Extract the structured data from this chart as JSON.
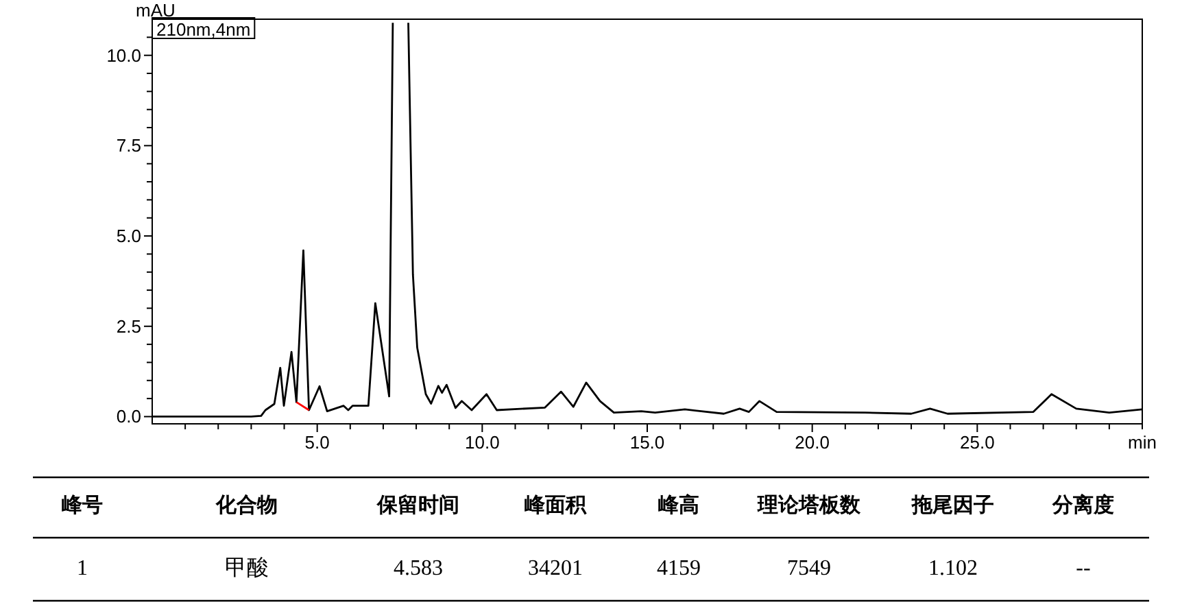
{
  "chart_data": [
    {
      "type": "line",
      "xlabel": "min",
      "ylabel": "mAU",
      "annotations": [
        "210nm,4nm"
      ],
      "xlim": [
        0,
        30
      ],
      "ylim": [
        -0.2,
        11
      ],
      "xticks": [
        {
          "value": 1,
          "label": null
        },
        {
          "value": 2,
          "label": null
        },
        {
          "value": 3,
          "label": null
        },
        {
          "value": 4,
          "label": null
        },
        {
          "value": 5,
          "label": "5.0"
        },
        {
          "value": 6,
          "label": null
        },
        {
          "value": 7,
          "label": null
        },
        {
          "value": 8,
          "label": null
        },
        {
          "value": 9,
          "label": null
        },
        {
          "value": 10,
          "label": "10.0"
        },
        {
          "value": 11,
          "label": null
        },
        {
          "value": 12,
          "label": null
        },
        {
          "value": 13,
          "label": null
        },
        {
          "value": 14,
          "label": null
        },
        {
          "value": 15,
          "label": "15.0"
        },
        {
          "value": 16,
          "label": null
        },
        {
          "value": 17,
          "label": null
        },
        {
          "value": 18,
          "label": null
        },
        {
          "value": 19,
          "label": null
        },
        {
          "value": 20,
          "label": "20.0"
        },
        {
          "value": 21,
          "label": null
        },
        {
          "value": 22,
          "label": null
        },
        {
          "value": 23,
          "label": null
        },
        {
          "value": 24,
          "label": null
        },
        {
          "value": 25,
          "label": "25.0"
        },
        {
          "value": 26,
          "label": null
        },
        {
          "value": 27,
          "label": null
        },
        {
          "value": 28,
          "label": null
        },
        {
          "value": 29,
          "label": null
        },
        {
          "value": 30,
          "label": null
        }
      ],
      "yticks": [
        {
          "value": 0,
          "label": "0.0"
        },
        {
          "value": 0.5,
          "label": null
        },
        {
          "value": 1,
          "label": null
        },
        {
          "value": 1.5,
          "label": null
        },
        {
          "value": 2,
          "label": null
        },
        {
          "value": 2.5,
          "label": "2.5"
        },
        {
          "value": 3,
          "label": null
        },
        {
          "value": 3.5,
          "label": null
        },
        {
          "value": 4,
          "label": null
        },
        {
          "value": 4.5,
          "label": null
        },
        {
          "value": 5,
          "label": "5.0"
        },
        {
          "value": 5.5,
          "label": null
        },
        {
          "value": 6,
          "label": null
        },
        {
          "value": 6.5,
          "label": null
        },
        {
          "value": 7,
          "label": null
        },
        {
          "value": 7.5,
          "label": "7.5"
        },
        {
          "value": 8,
          "label": null
        },
        {
          "value": 8.5,
          "label": null
        },
        {
          "value": 9,
          "label": null
        },
        {
          "value": 9.5,
          "label": null
        },
        {
          "value": 10,
          "label": "10.0"
        },
        {
          "value": 10.5,
          "label": null
        }
      ],
      "grid": false,
      "series": [
        {
          "color": "#000000",
          "x": [
            0,
            1,
            2,
            3,
            3.3,
            3.43,
            3.7,
            3.88,
            3.99,
            4.22,
            4.37,
            4.58,
            4.75,
            5.07,
            5.3,
            5.8,
            5.94,
            6.07,
            6.55,
            6.76,
            7.18,
            7.29
          ],
          "values": [
            0.0,
            0.0,
            0.0,
            0.0,
            0.02,
            0.18,
            0.35,
            1.35,
            0.3,
            1.79,
            0.4,
            4.6,
            0.18,
            0.84,
            0.15,
            0.3,
            0.18,
            0.3,
            0.3,
            3.14,
            0.56,
            10.9
          ]
        },
        {
          "color": "#000000",
          "x": [
            7.76,
            7.9,
            8.03,
            8.29,
            8.45,
            8.67,
            8.78,
            8.92,
            9.19,
            9.38,
            9.68,
            10.13,
            10.44,
            11.9,
            12.39,
            12.76,
            13.15,
            13.57,
            13.99,
            14.82,
            15.24,
            16.14,
            17.32,
            17.8,
            18.08,
            18.4,
            18.92,
            21.6,
            23.0,
            23.57,
            24.1,
            26.7,
            27.25,
            28.0,
            29.0,
            30.0
          ],
          "values": [
            10.9,
            3.93,
            1.91,
            0.62,
            0.36,
            0.85,
            0.66,
            0.88,
            0.24,
            0.43,
            0.18,
            0.62,
            0.18,
            0.25,
            0.69,
            0.27,
            0.94,
            0.43,
            0.11,
            0.15,
            0.11,
            0.2,
            0.08,
            0.22,
            0.13,
            0.43,
            0.13,
            0.11,
            0.08,
            0.22,
            0.08,
            0.13,
            0.62,
            0.22,
            0.11,
            0.2
          ]
        },
        {
          "color": "#ff0000",
          "x": [
            4.37,
            4.75
          ],
          "values": [
            0.4,
            0.18
          ]
        }
      ]
    },
    {
      "type": "other",
      "annotations": [
        "峰号",
        "化合物",
        "保留时间",
        "峰面积",
        "峰高",
        "理论塔板数",
        "拖尾因子",
        "分离度",
        "1",
        "甲酸",
        "4.583",
        "34201",
        "4159",
        "7549",
        "1.102",
        "--"
      ]
    }
  ]
}
